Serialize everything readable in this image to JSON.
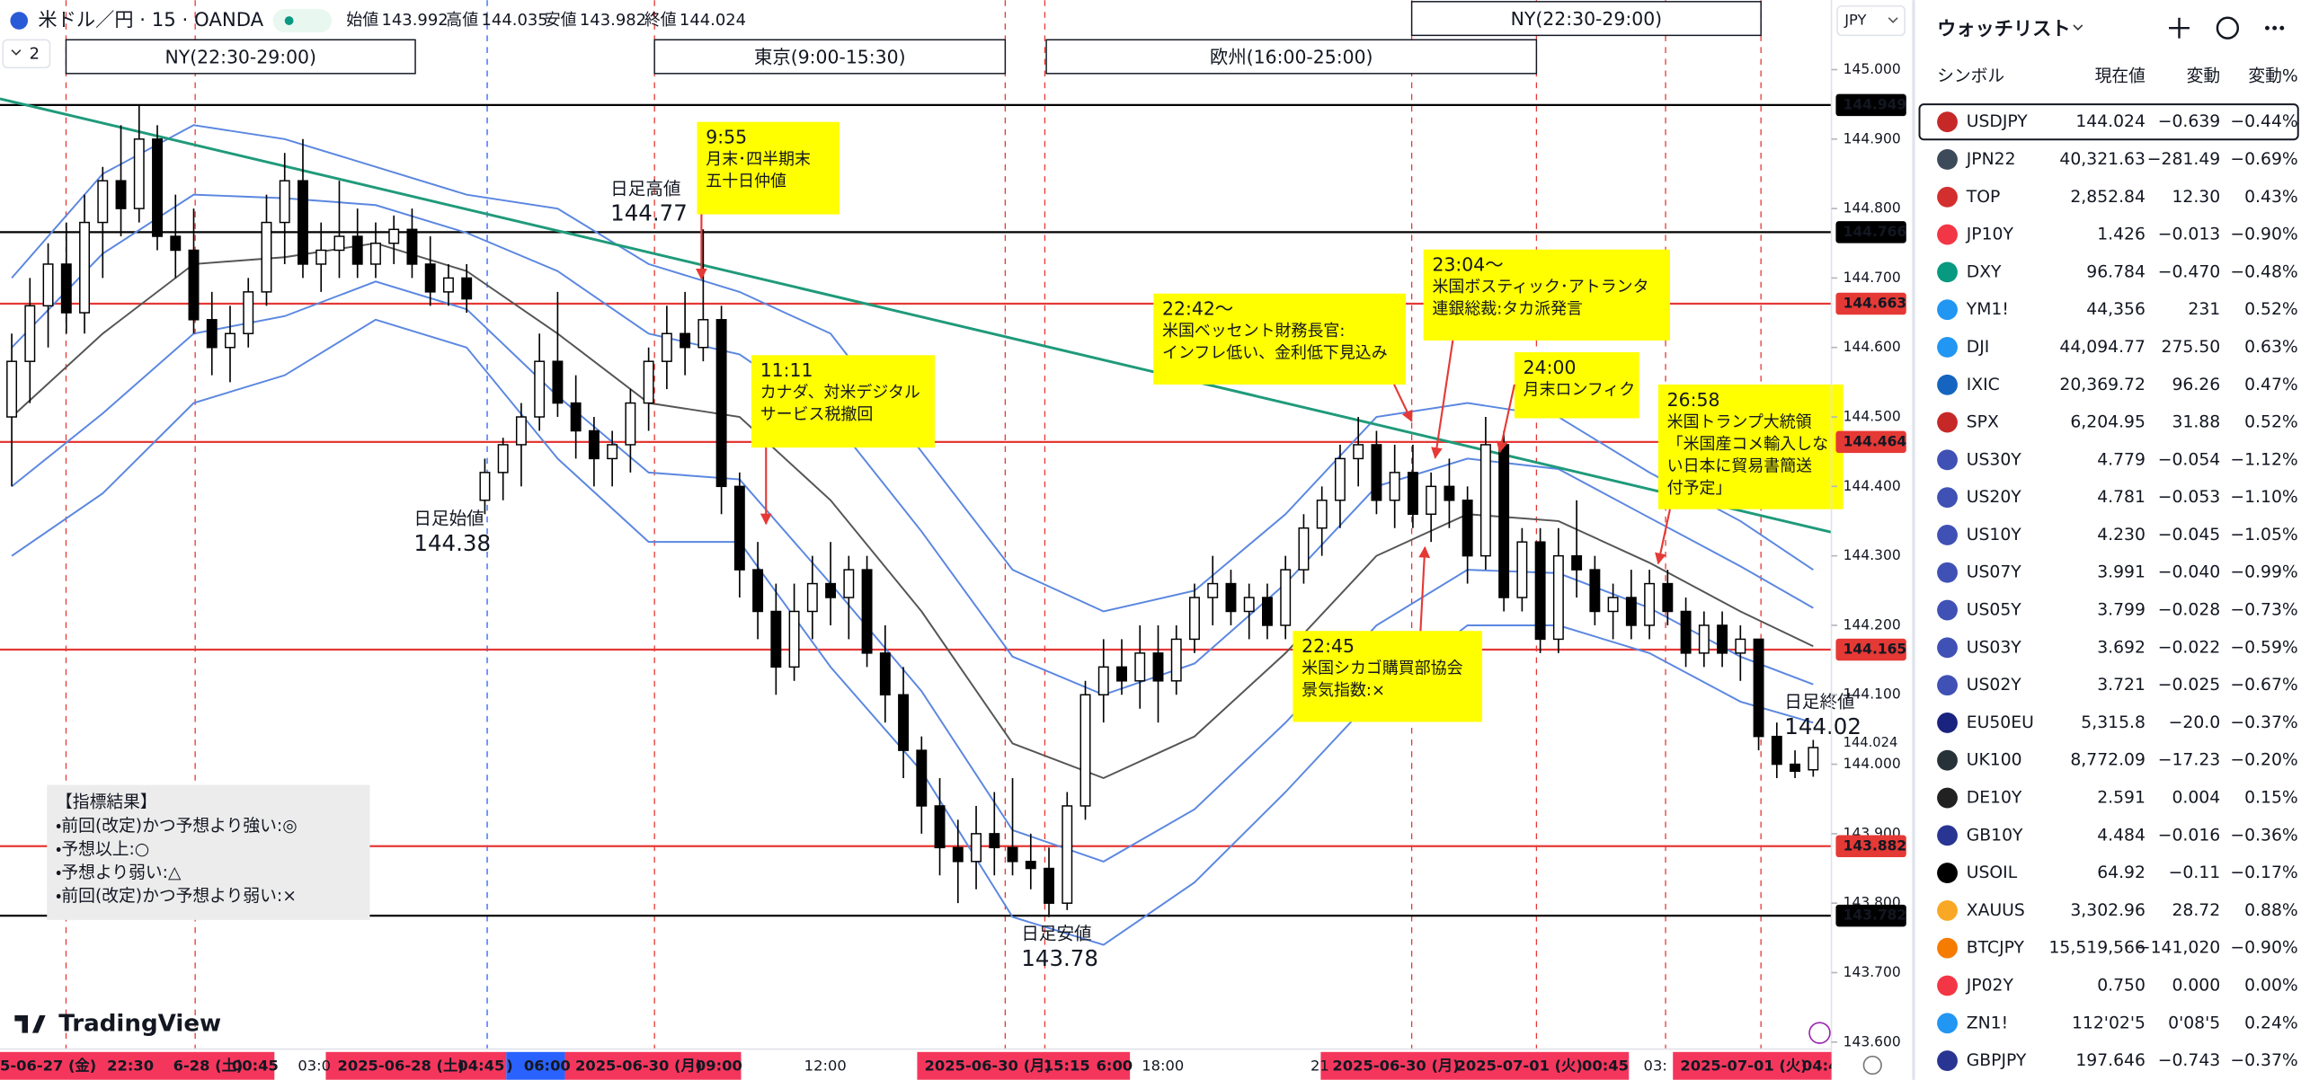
{
  "header": {
    "symbol": "米ドル／円 · 15 · OANDA",
    "interval_button": "2",
    "ohlc": [
      {
        "label": "始値",
        "value": 143.992
      },
      {
        "label": "高値",
        "value": 144.035
      },
      {
        "label": "安値",
        "value": 143.982
      },
      {
        "label": "終値",
        "value": 144.024
      }
    ]
  },
  "chart_data": {
    "type": "candlestick",
    "currency": "JPY",
    "ylim": [
      143.59,
      145.1
    ],
    "yticks": [
      {
        "value": 145,
        "label": "145.000"
      },
      {
        "value": 144.9,
        "label": "144.900"
      },
      {
        "value": 144.8,
        "label": "144.800"
      },
      {
        "value": 144.7,
        "label": "144.700"
      },
      {
        "value": 144.6,
        "label": "144.600"
      },
      {
        "value": 144.5,
        "label": "144.500"
      },
      {
        "value": 144.4,
        "label": "144.400"
      },
      {
        "value": 144.3,
        "label": "144.300"
      },
      {
        "value": 144.2,
        "label": "144.200"
      },
      {
        "value": 144.1,
        "label": "144.100"
      },
      {
        "value": 144,
        "label": "144.000"
      },
      {
        "value": 143.9,
        "label": "143.900"
      },
      {
        "value": 143.8,
        "label": "143.800"
      },
      {
        "value": 143.7,
        "label": "143.700"
      },
      {
        "value": 143.6,
        "label": "143.600"
      }
    ],
    "up_color": "#ffffff",
    "down_color": "#000000",
    "candles": [
      [
        144.5,
        144.62,
        144.4,
        144.58
      ],
      [
        144.58,
        144.7,
        144.52,
        144.66
      ],
      [
        144.66,
        144.75,
        144.6,
        144.72
      ],
      [
        144.72,
        144.78,
        144.62,
        144.65
      ],
      [
        144.65,
        144.82,
        144.62,
        144.78
      ],
      [
        144.78,
        144.86,
        144.7,
        144.84
      ],
      [
        144.84,
        144.92,
        144.76,
        144.8
      ],
      [
        144.8,
        144.95,
        144.78,
        144.9
      ],
      [
        144.9,
        144.92,
        144.74,
        144.76
      ],
      [
        144.76,
        144.82,
        144.7,
        144.74
      ],
      [
        144.74,
        144.8,
        144.62,
        144.64
      ],
      [
        144.64,
        144.68,
        144.56,
        144.6
      ],
      [
        144.6,
        144.66,
        144.55,
        144.62
      ],
      [
        144.62,
        144.7,
        144.6,
        144.68
      ],
      [
        144.68,
        144.82,
        144.66,
        144.78
      ],
      [
        144.78,
        144.88,
        144.72,
        144.84
      ],
      [
        144.84,
        144.9,
        144.7,
        144.72
      ],
      [
        144.72,
        144.78,
        144.68,
        144.74
      ],
      [
        144.74,
        144.84,
        144.7,
        144.76
      ],
      [
        144.76,
        144.8,
        144.7,
        144.72
      ],
      [
        144.72,
        144.78,
        144.7,
        144.75
      ],
      [
        144.75,
        144.79,
        144.72,
        144.77
      ],
      [
        144.77,
        144.8,
        144.7,
        144.72
      ],
      [
        144.72,
        144.76,
        144.66,
        144.68
      ],
      [
        144.68,
        144.72,
        144.66,
        144.7
      ],
      [
        144.7,
        144.72,
        144.65,
        144.67
      ],
      [
        144.38,
        144.44,
        144.36,
        144.42
      ],
      [
        144.42,
        144.47,
        144.38,
        144.46
      ],
      [
        144.46,
        144.52,
        144.4,
        144.5
      ],
      [
        144.5,
        144.62,
        144.48,
        144.58
      ],
      [
        144.58,
        144.68,
        144.5,
        144.52
      ],
      [
        144.52,
        144.56,
        144.44,
        144.48
      ],
      [
        144.48,
        144.5,
        144.4,
        144.44
      ],
      [
        144.44,
        144.48,
        144.4,
        144.46
      ],
      [
        144.46,
        144.54,
        144.42,
        144.52
      ],
      [
        144.52,
        144.6,
        144.48,
        144.58
      ],
      [
        144.58,
        144.66,
        144.54,
        144.62
      ],
      [
        144.62,
        144.68,
        144.56,
        144.6
      ],
      [
        144.6,
        144.77,
        144.58,
        144.64
      ],
      [
        144.64,
        144.66,
        144.36,
        144.4
      ],
      [
        144.4,
        144.42,
        144.24,
        144.28
      ],
      [
        144.28,
        144.32,
        144.18,
        144.22
      ],
      [
        144.22,
        144.26,
        144.1,
        144.14
      ],
      [
        144.14,
        144.26,
        144.12,
        144.22
      ],
      [
        144.22,
        144.3,
        144.18,
        144.26
      ],
      [
        144.26,
        144.32,
        144.2,
        144.24
      ],
      [
        144.24,
        144.3,
        144.18,
        144.28
      ],
      [
        144.28,
        144.3,
        144.14,
        144.16
      ],
      [
        144.16,
        144.2,
        144.06,
        144.1
      ],
      [
        144.1,
        144.14,
        143.98,
        144.02
      ],
      [
        144.02,
        144.04,
        143.9,
        143.94
      ],
      [
        143.94,
        143.98,
        143.84,
        143.88
      ],
      [
        143.88,
        143.92,
        143.8,
        143.86
      ],
      [
        143.86,
        143.94,
        143.82,
        143.9
      ],
      [
        143.9,
        143.96,
        143.84,
        143.88
      ],
      [
        143.88,
        143.98,
        143.84,
        143.86
      ],
      [
        143.86,
        143.9,
        143.82,
        143.85
      ],
      [
        143.85,
        143.88,
        143.78,
        143.8
      ],
      [
        143.8,
        143.96,
        143.79,
        143.94
      ],
      [
        143.94,
        144.12,
        143.92,
        144.1
      ],
      [
        144.1,
        144.18,
        144.06,
        144.14
      ],
      [
        144.14,
        144.18,
        144.1,
        144.12
      ],
      [
        144.12,
        144.2,
        144.08,
        144.16
      ],
      [
        144.16,
        144.2,
        144.06,
        144.12
      ],
      [
        144.12,
        144.2,
        144.1,
        144.18
      ],
      [
        144.18,
        144.26,
        144.16,
        144.24
      ],
      [
        144.24,
        144.3,
        144.2,
        144.26
      ],
      [
        144.26,
        144.28,
        144.2,
        144.22
      ],
      [
        144.22,
        144.26,
        144.18,
        144.24
      ],
      [
        144.24,
        144.26,
        144.18,
        144.2
      ],
      [
        144.2,
        144.3,
        144.18,
        144.28
      ],
      [
        144.28,
        144.36,
        144.26,
        144.34
      ],
      [
        144.34,
        144.4,
        144.3,
        144.38
      ],
      [
        144.38,
        144.46,
        144.34,
        144.44
      ],
      [
        144.44,
        144.5,
        144.4,
        144.46
      ],
      [
        144.46,
        144.48,
        144.36,
        144.38
      ],
      [
        144.38,
        144.46,
        144.34,
        144.42
      ],
      [
        144.42,
        144.46,
        144.34,
        144.36
      ],
      [
        144.36,
        144.42,
        144.32,
        144.4
      ],
      [
        144.4,
        144.44,
        144.34,
        144.38
      ],
      [
        144.38,
        144.4,
        144.26,
        144.3
      ],
      [
        144.3,
        144.5,
        144.28,
        144.46
      ],
      [
        144.46,
        144.48,
        144.22,
        144.24
      ],
      [
        144.24,
        144.34,
        144.22,
        144.32
      ],
      [
        144.32,
        144.34,
        144.16,
        144.18
      ],
      [
        144.18,
        144.34,
        144.16,
        144.3
      ],
      [
        144.3,
        144.38,
        144.24,
        144.28
      ],
      [
        144.28,
        144.3,
        144.2,
        144.22
      ],
      [
        144.22,
        144.26,
        144.18,
        144.24
      ],
      [
        144.24,
        144.28,
        144.18,
        144.2
      ],
      [
        144.2,
        144.28,
        144.18,
        144.26
      ],
      [
        144.26,
        144.28,
        144.2,
        144.22
      ],
      [
        144.22,
        144.24,
        144.14,
        144.16
      ],
      [
        144.16,
        144.22,
        144.14,
        144.2
      ],
      [
        144.2,
        144.22,
        144.14,
        144.16
      ],
      [
        144.16,
        144.2,
        144.12,
        144.18
      ],
      [
        144.18,
        144.18,
        144.02,
        144.04
      ],
      [
        144.04,
        144.06,
        143.98,
        144.0
      ],
      [
        144.0,
        144.02,
        143.98,
        143.99
      ],
      [
        143.992,
        144.035,
        143.982,
        144.024
      ]
    ],
    "indicators": {
      "x": [
        0,
        5,
        10,
        15,
        20,
        25,
        30,
        35,
        40,
        45,
        50,
        55,
        60,
        65,
        70,
        75,
        80,
        85,
        90,
        95,
        99
      ],
      "series": [
        {
          "color": "#5b87e0",
          "values": [
            144.7,
            144.85,
            144.92,
            144.9,
            144.86,
            144.82,
            144.8,
            144.72,
            144.68,
            144.62,
            144.45,
            144.28,
            144.22,
            144.25,
            144.36,
            144.5,
            144.52,
            144.5,
            144.42,
            144.35,
            144.28
          ]
        },
        {
          "color": "#5b87e0",
          "values": [
            144.6,
            144.735,
            144.82,
            144.815,
            144.805,
            144.765,
            144.71,
            144.62,
            144.59,
            144.5,
            144.335,
            144.155,
            144.1,
            144.145,
            144.26,
            144.4,
            144.44,
            144.425,
            144.355,
            144.285,
            144.225
          ]
        },
        {
          "color": "#555555",
          "values": [
            144.5,
            144.62,
            144.72,
            144.73,
            144.75,
            144.71,
            144.62,
            144.52,
            144.5,
            144.38,
            144.22,
            144.03,
            143.98,
            144.04,
            144.16,
            144.3,
            144.36,
            144.35,
            144.29,
            144.22,
            144.17
          ]
        },
        {
          "color": "#5b87e0",
          "values": [
            144.4,
            144.505,
            144.62,
            144.645,
            144.695,
            144.655,
            144.53,
            144.42,
            144.41,
            144.26,
            144.105,
            143.905,
            143.86,
            143.935,
            144.06,
            144.2,
            144.28,
            144.275,
            144.225,
            144.155,
            144.115
          ]
        },
        {
          "color": "#5b87e0",
          "values": [
            144.3,
            144.39,
            144.52,
            144.56,
            144.64,
            144.6,
            144.44,
            144.32,
            144.32,
            144.14,
            143.99,
            143.78,
            143.74,
            143.83,
            143.96,
            144.1,
            144.2,
            144.2,
            144.16,
            144.09,
            144.06
          ]
        }
      ]
    },
    "trendline": {
      "color": "#1f9a7a",
      "values": [
        144.958,
        144.334
      ]
    },
    "price_lines": [
      {
        "value": 144.949,
        "color": "#000000"
      },
      {
        "value": 144.766,
        "color": "#000000"
      },
      {
        "value": 144.663,
        "color": "#e53935"
      },
      {
        "value": 144.464,
        "color": "#e53935"
      },
      {
        "value": 144.165,
        "color": "#e53935"
      },
      {
        "value": 143.882,
        "color": "#e53935"
      },
      {
        "value": 143.782,
        "color": "#000000"
      }
    ],
    "last_price": 144.024,
    "sessions": [
      "NY(22:30-29:00)",
      "東京(9:00-15:30)",
      "欧州(16:00-25:00)",
      "NY(22:30-29:00)"
    ],
    "daily_labels": [
      {
        "label": "日足高値",
        "value": 144.77
      },
      {
        "label": "日足始値",
        "value": 144.38
      },
      {
        "label": "日足安値",
        "value": 143.78
      },
      {
        "label": "日足終値",
        "value": 144.02
      }
    ],
    "annotations": [
      {
        "color": "#000000",
        "lines": [
          "9:55",
          "月末･四半期末",
          "五十日仲値"
        ]
      },
      {
        "color": "#e53935",
        "lines": [
          "11:11",
          "カナダ、対米デジタル",
          "サービス税撤回"
        ]
      },
      {
        "color": "#e53935",
        "lines": [
          "22:42～",
          "米国ベッセント財務長官:",
          "インフレ低い、金利低下見込み"
        ]
      },
      {
        "color": "#000000",
        "lines": [
          "23:04～",
          "米国ボスティック･アトランタ",
          "連銀総裁:タカ派発言"
        ]
      },
      {
        "color": "#000000",
        "lines": [
          "24:00",
          "月末ロンフィク"
        ]
      },
      {
        "color": "#e53935",
        "lines": [
          "26:58",
          "米国トランプ大統領",
          "「米国産コメ輸入しな",
          "い日本に貿易書簡送",
          "付予定」"
        ]
      },
      {
        "color": "#000000",
        "lines": [
          "22:45",
          "米国シカゴ購買部協会",
          "景気指数:×"
        ]
      }
    ],
    "legend_box": [
      "【指標結果】",
      "・前回(改定)かつ予想より強い:◎",
      "・予想以上:○",
      "・予想より弱い:△",
      "・前回(改定)かつ予想より弱い:×"
    ],
    "time_labels": [
      "5-06-27 (金)",
      "22:30",
      "6-28 (土)",
      "00:45",
      "03:0",
      "2025-06-28 (土)",
      "04:45",
      ")",
      "06:00",
      "2025-06-30 (月)",
      "09:00",
      "12:00",
      "2025-06-30 (月)",
      "15:15",
      "6:00",
      "18:00",
      "21",
      "2025-06-30 (月)",
      "2025-07-01 (火)",
      "00:45",
      "03:",
      "2025-07-01 (火)",
      "04:4"
    ],
    "logo": "TradingView"
  },
  "watchlist": {
    "title": "ウォッチリスト",
    "columns": [
      "シンボル",
      "現在値",
      "変動",
      "変動%"
    ],
    "rows": [
      [
        "USDJPY",
        "144.024",
        "−0.639",
        "−0.44%"
      ],
      [
        "JPN22",
        "40,321.63",
        "−281.49",
        "−0.69%"
      ],
      [
        "TOP",
        "2,852.84",
        "12.30",
        "0.43%"
      ],
      [
        "JP10Y",
        "1.426",
        "−0.013",
        "−0.90%"
      ],
      [
        "DXY",
        "96.784",
        "−0.470",
        "−0.48%"
      ],
      [
        "YM1!",
        "44,356",
        "231",
        "0.52%"
      ],
      [
        "DJI",
        "44,094.77",
        "275.50",
        "0.63%"
      ],
      [
        "IXIC",
        "20,369.72",
        "96.26",
        "0.47%"
      ],
      [
        "SPX",
        "6,204.95",
        "31.88",
        "0.52%"
      ],
      [
        "US30Y",
        "4.779",
        "−0.054",
        "−1.12%"
      ],
      [
        "US20Y",
        "4.781",
        "−0.053",
        "−1.10%"
      ],
      [
        "US10Y",
        "4.230",
        "−0.045",
        "−1.05%"
      ],
      [
        "US07Y",
        "3.991",
        "−0.040",
        "−0.99%"
      ],
      [
        "US05Y",
        "3.799",
        "−0.028",
        "−0.73%"
      ],
      [
        "US03Y",
        "3.692",
        "−0.022",
        "−0.59%"
      ],
      [
        "US02Y",
        "3.721",
        "−0.025",
        "−0.67%"
      ],
      [
        "EU50EU",
        "5,315.8",
        "−20.0",
        "−0.37%"
      ],
      [
        "UK100",
        "8,772.09",
        "−17.23",
        "−0.20%"
      ],
      [
        "DE10Y",
        "2.591",
        "0.004",
        "0.15%"
      ],
      [
        "GB10Y",
        "4.484",
        "−0.016",
        "−0.36%"
      ],
      [
        "USOIL",
        "64.92",
        "−0.11",
        "−0.17%"
      ],
      [
        "XAUUS",
        "3,302.96",
        "28.72",
        "0.88%"
      ],
      [
        "BTCJPY",
        "15,519,566",
        "−141,020",
        "−0.90%"
      ],
      [
        "JP02Y",
        "0.750",
        "0.000",
        "0.00%"
      ],
      [
        "ZN1!",
        "112'02'5",
        "0'08'5",
        "0.24%"
      ],
      [
        "GBPJPY",
        "197.646",
        "−0.743",
        "−0.37%"
      ]
    ]
  }
}
